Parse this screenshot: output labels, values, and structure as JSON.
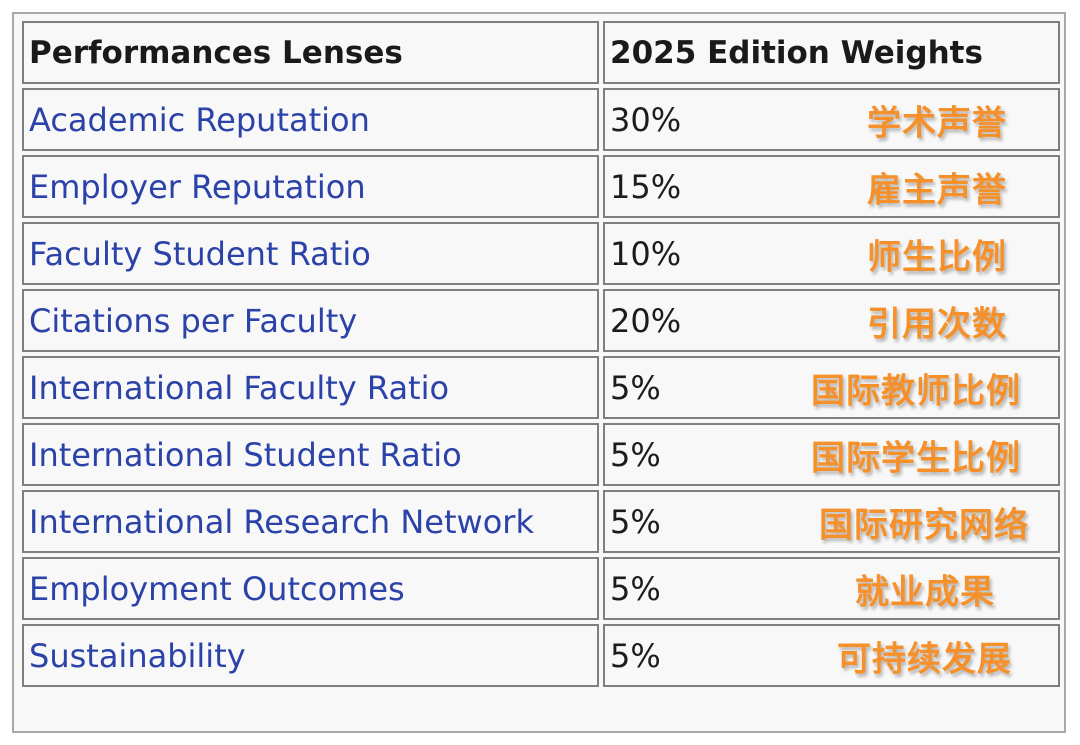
{
  "table": {
    "headers": [
      "Performances Lenses",
      "2025 Edition Weights"
    ],
    "rows": [
      {
        "lens": "Academic Reputation",
        "weight": "30%",
        "chinese": "学术声誉"
      },
      {
        "lens": "Employer Reputation",
        "weight": "15%",
        "chinese": "雇主声誉"
      },
      {
        "lens": "Faculty Student Ratio",
        "weight": "10%",
        "chinese": "师生比例"
      },
      {
        "lens": "Citations per Faculty",
        "weight": "20%",
        "chinese": "引用次数"
      },
      {
        "lens": "International Faculty Ratio",
        "weight": "5%",
        "chinese": "国际教师比例"
      },
      {
        "lens": "International Student Ratio",
        "weight": "5%",
        "chinese": "国际学生比例"
      },
      {
        "lens": "International Research Network",
        "weight": "5%",
        "chinese": "国际研究网络"
      },
      {
        "lens": "Employment Outcomes",
        "weight": "5%",
        "chinese": "就业成果"
      },
      {
        "lens": "Sustainability",
        "weight": "5%",
        "chinese": "可持续发展"
      }
    ]
  },
  "colors": {
    "lens_text": "#2b42a8",
    "annotation": "#f5902a",
    "border": "#7f7f7f"
  }
}
